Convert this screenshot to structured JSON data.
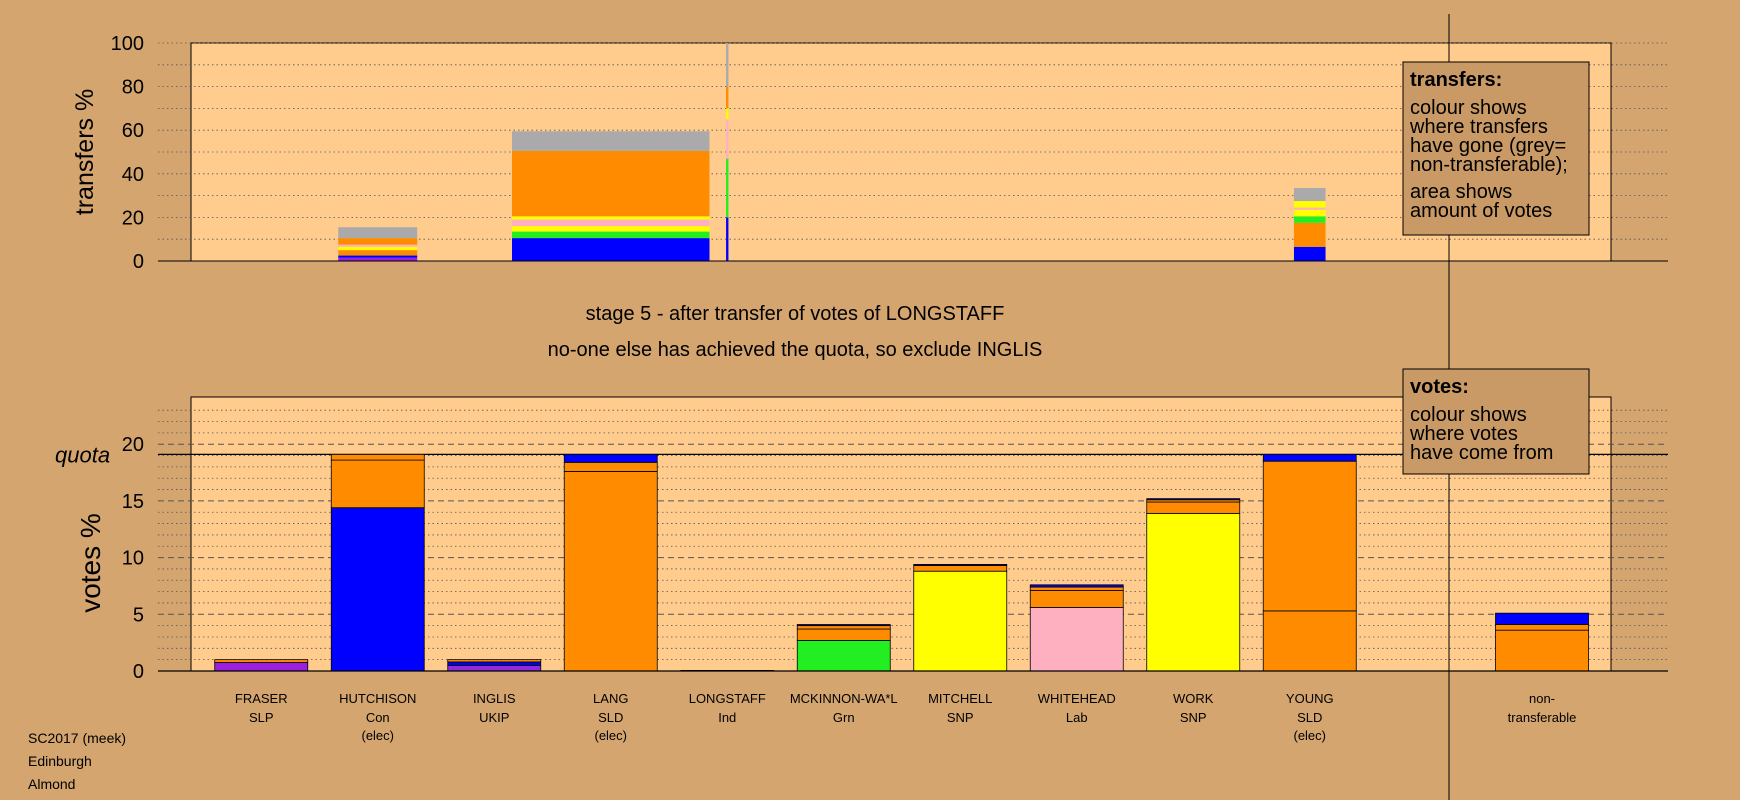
{
  "colors": {
    "background": "#d4a56f",
    "plot_bg": "#ffcc8e",
    "SLP": "#9a1fe0",
    "Con": "#0000ff",
    "UKIP": "#8c2be0",
    "SLD": "#ff8c00",
    "Ind": "#ff9a9a",
    "Grn": "#22ee22",
    "SNP": "#ffff00",
    "Lab": "#ffb0c0",
    "nontransferable": "#aaaaaa"
  },
  "titles": {
    "line1": "stage 5 - after transfer of votes of LONGSTAFF",
    "line2": "no-one else has achieved the quota, so exclude INGLIS"
  },
  "legend_transfers": {
    "title": "transfers:",
    "lines": [
      "colour shows",
      "where transfers",
      "have gone (grey=",
      "non-transferable);",
      "area shows",
      "amount of votes"
    ]
  },
  "legend_votes": {
    "title": "votes:",
    "lines": [
      "colour shows",
      "where votes",
      "have come from"
    ]
  },
  "footer": [
    "SC2017 (meek)",
    "Edinburgh",
    "Almond"
  ],
  "chart_data": [
    {
      "type": "bar",
      "name": "transfers",
      "ylabel": "transfers %",
      "ylim": [
        0,
        100
      ],
      "yticks": [
        0,
        20,
        40,
        60,
        80,
        100
      ],
      "grid": "dotted",
      "categories": [
        "FRASER",
        "HUTCHISON",
        "INGLIS",
        "LANG",
        "LONGSTAFF",
        "MCKINNON-WA*L",
        "MITCHELL",
        "WHITEHEAD",
        "WORK",
        "YOUNG"
      ],
      "bars": [
        {
          "candidate": "FRASER",
          "width": 1,
          "segments": []
        },
        {
          "candidate": "HUTCHISON",
          "width": 1,
          "segments": [
            {
              "party": "SLP",
              "value": 1.5
            },
            {
              "party": "Con",
              "value": 1.0
            },
            {
              "party": "SLD",
              "value": 2.5
            },
            {
              "party": "SNP",
              "value": 1.5
            },
            {
              "party": "Lab",
              "value": 1.0
            },
            {
              "party": "SLD",
              "value": 3.0
            },
            {
              "party": "nontransferable",
              "value": 5.0
            }
          ]
        },
        {
          "candidate": "INGLIS",
          "width": 1,
          "segments": []
        },
        {
          "candidate": "LANG",
          "width": 2.5,
          "segments": [
            {
              "party": "Con",
              "value": 10.5
            },
            {
              "party": "Grn",
              "value": 3.0
            },
            {
              "party": "SNP",
              "value": 2.5
            },
            {
              "party": "Lab",
              "value": 3.0
            },
            {
              "party": "SNP",
              "value": 1.5
            },
            {
              "party": "SLD",
              "value": 30.0
            },
            {
              "party": "nontransferable",
              "value": 9.0
            }
          ]
        },
        {
          "candidate": "LONGSTAFF",
          "width": 0.03,
          "segments": [
            {
              "party": "Con",
              "value": 20
            },
            {
              "party": "Grn",
              "value": 27
            },
            {
              "party": "Lab",
              "value": 18
            },
            {
              "party": "SNP",
              "value": 5
            },
            {
              "party": "SLD",
              "value": 10
            },
            {
              "party": "nontransferable",
              "value": 20
            }
          ]
        },
        {
          "candidate": "MCKINNON-WA*L",
          "width": 1,
          "segments": []
        },
        {
          "candidate": "MITCHELL",
          "width": 1,
          "segments": []
        },
        {
          "candidate": "WHITEHEAD",
          "width": 1,
          "segments": []
        },
        {
          "candidate": "WORK",
          "width": 1,
          "segments": []
        },
        {
          "candidate": "YOUNG",
          "width": 0.4,
          "segments": [
            {
              "party": "Con",
              "value": 6.5
            },
            {
              "party": "SLD",
              "value": 11.0
            },
            {
              "party": "Grn",
              "value": 3.0
            },
            {
              "party": "SNP",
              "value": 3.0
            },
            {
              "party": "Lab",
              "value": 1.0
            },
            {
              "party": "SNP",
              "value": 3.0
            },
            {
              "party": "nontransferable",
              "value": 6.0
            }
          ]
        }
      ]
    },
    {
      "type": "bar",
      "name": "votes",
      "ylabel": "votes %",
      "ylim": [
        0,
        24
      ],
      "yticks": [
        0,
        5,
        10,
        15,
        20
      ],
      "quota": 19.1,
      "quota_label": "quota",
      "grid": "dashed",
      "bars": [
        {
          "candidate": "FRASER",
          "party": "SLP",
          "status": "",
          "segments": [
            {
              "party": "SLP",
              "value": 0.75
            },
            {
              "party": "SLD",
              "value": 0.25
            }
          ]
        },
        {
          "candidate": "HUTCHISON",
          "party": "Con",
          "status": "(elec)",
          "segments": [
            {
              "party": "Con",
              "value": 14.4
            },
            {
              "party": "SLD",
              "value": 4.2
            },
            {
              "party": "SLD",
              "value": 0.5
            }
          ]
        },
        {
          "candidate": "INGLIS",
          "party": "UKIP",
          "status": "",
          "segments": [
            {
              "party": "UKIP",
              "value": 0.5
            },
            {
              "party": "Con",
              "value": 0.3
            },
            {
              "party": "SLD",
              "value": 0.2
            }
          ]
        },
        {
          "candidate": "LANG",
          "party": "SLD",
          "status": "(elec)",
          "segments": [
            {
              "party": "SLD",
              "value": 17.6
            },
            {
              "party": "SLD",
              "value": 0.8
            },
            {
              "party": "Con",
              "value": 0.7
            }
          ]
        },
        {
          "candidate": "LONGSTAFF",
          "party": "Ind",
          "status": "",
          "segments": [
            {
              "party": "Ind",
              "value": 0.05
            }
          ]
        },
        {
          "candidate": "MCKINNON-WA*L",
          "party": "Grn",
          "status": "",
          "segments": [
            {
              "party": "Grn",
              "value": 2.7
            },
            {
              "party": "SLD",
              "value": 1.0
            },
            {
              "party": "SLD",
              "value": 0.3
            },
            {
              "party": "Con",
              "value": 0.1
            }
          ]
        },
        {
          "candidate": "MITCHELL",
          "party": "SNP",
          "status": "",
          "segments": [
            {
              "party": "SNP",
              "value": 8.8
            },
            {
              "party": "SLD",
              "value": 0.5
            },
            {
              "party": "Con",
              "value": 0.1
            }
          ]
        },
        {
          "candidate": "WHITEHEAD",
          "party": "Lab",
          "status": "",
          "segments": [
            {
              "party": "Lab",
              "value": 5.6
            },
            {
              "party": "SLD",
              "value": 1.5
            },
            {
              "party": "SLD",
              "value": 0.3
            },
            {
              "party": "Con",
              "value": 0.2
            }
          ]
        },
        {
          "candidate": "WORK",
          "party": "SNP",
          "status": "",
          "segments": [
            {
              "party": "SNP",
              "value": 13.9
            },
            {
              "party": "SLD",
              "value": 1.0
            },
            {
              "party": "SLD",
              "value": 0.2
            },
            {
              "party": "Con",
              "value": 0.1
            }
          ]
        },
        {
          "candidate": "YOUNG",
          "party": "SLD",
          "status": "(elec)",
          "segments": [
            {
              "party": "SLD",
              "value": 5.3
            },
            {
              "party": "SLD",
              "value": 13.2
            },
            {
              "party": "Con",
              "value": 0.6
            }
          ]
        },
        {
          "candidate": "non-",
          "party": "transferable",
          "status": "",
          "segments": [
            {
              "party": "SLD",
              "value": 3.6
            },
            {
              "party": "SLD",
              "value": 0.5
            },
            {
              "party": "Con",
              "value": 1.0
            }
          ]
        }
      ]
    }
  ]
}
